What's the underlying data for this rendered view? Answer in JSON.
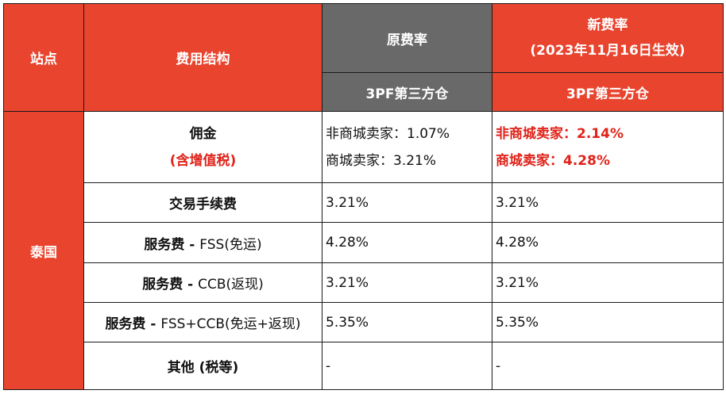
{
  "header": {
    "site": "站点",
    "fee_structure": "费用结构",
    "old_rate": "原费率",
    "new_rate": "新费率",
    "new_rate_effective": "(2023年11月16日生效)",
    "old_sub": "3PF第三方仓",
    "new_sub": "3PF第三方仓"
  },
  "site": "泰国",
  "rows": [
    {
      "name": "佣金",
      "name_sub": "(含增值税)",
      "old": [
        "非商城卖家：1.07%",
        "商城卖家：3.21%"
      ],
      "new": [
        "非商城卖家：2.14%",
        "商城卖家：4.28%"
      ]
    },
    {
      "name": "交易手续费",
      "old": "3.21%",
      "new": "3.21%"
    },
    {
      "name_bold": "服务费 - ",
      "name_rest": "FSS(免运)",
      "old": "4.28%",
      "new": "4.28%"
    },
    {
      "name_bold": "服务费 - ",
      "name_rest": "CCB(返现)",
      "old": "3.21%",
      "new": "3.21%"
    },
    {
      "name_bold": "服务费 - ",
      "name_rest": "FSS+CCB(免运+返现)",
      "old": "5.35%",
      "new": "5.35%"
    },
    {
      "name": "其他 (税等)",
      "old": "-",
      "new": "-"
    }
  ],
  "colors": {
    "header_red": "#e8442e",
    "header_gray": "#696969",
    "highlight_text": "#e0231a"
  }
}
